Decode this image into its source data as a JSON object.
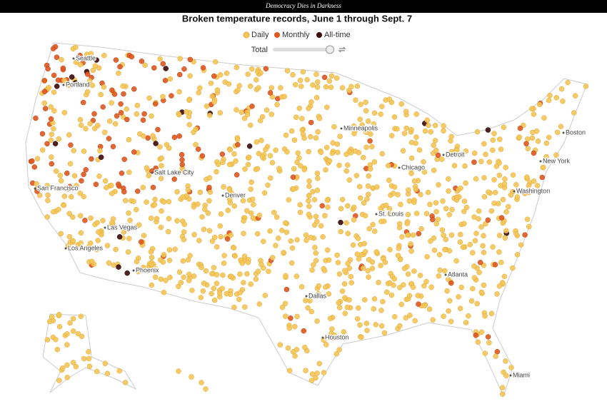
{
  "header": {
    "tagline": "Democracy Dies in Darkness"
  },
  "title": "Broken temperature records, June 1 through Sept. 7",
  "legend": [
    "Daily",
    "Monthly",
    "All-time"
  ],
  "slider": {
    "label": "Total"
  },
  "cities": [
    "Seattle",
    "Portland",
    "San Francisco",
    "Salt Lake City",
    "Las Vegas",
    "Los Angeles",
    "Phoenix",
    "Denver",
    "Minneapolis",
    "Chicago",
    "Detroit",
    "St. Louis",
    "Dallas",
    "Houston",
    "Atlanta",
    "Miami",
    "Washington",
    "New York",
    "Boston"
  ]
}
